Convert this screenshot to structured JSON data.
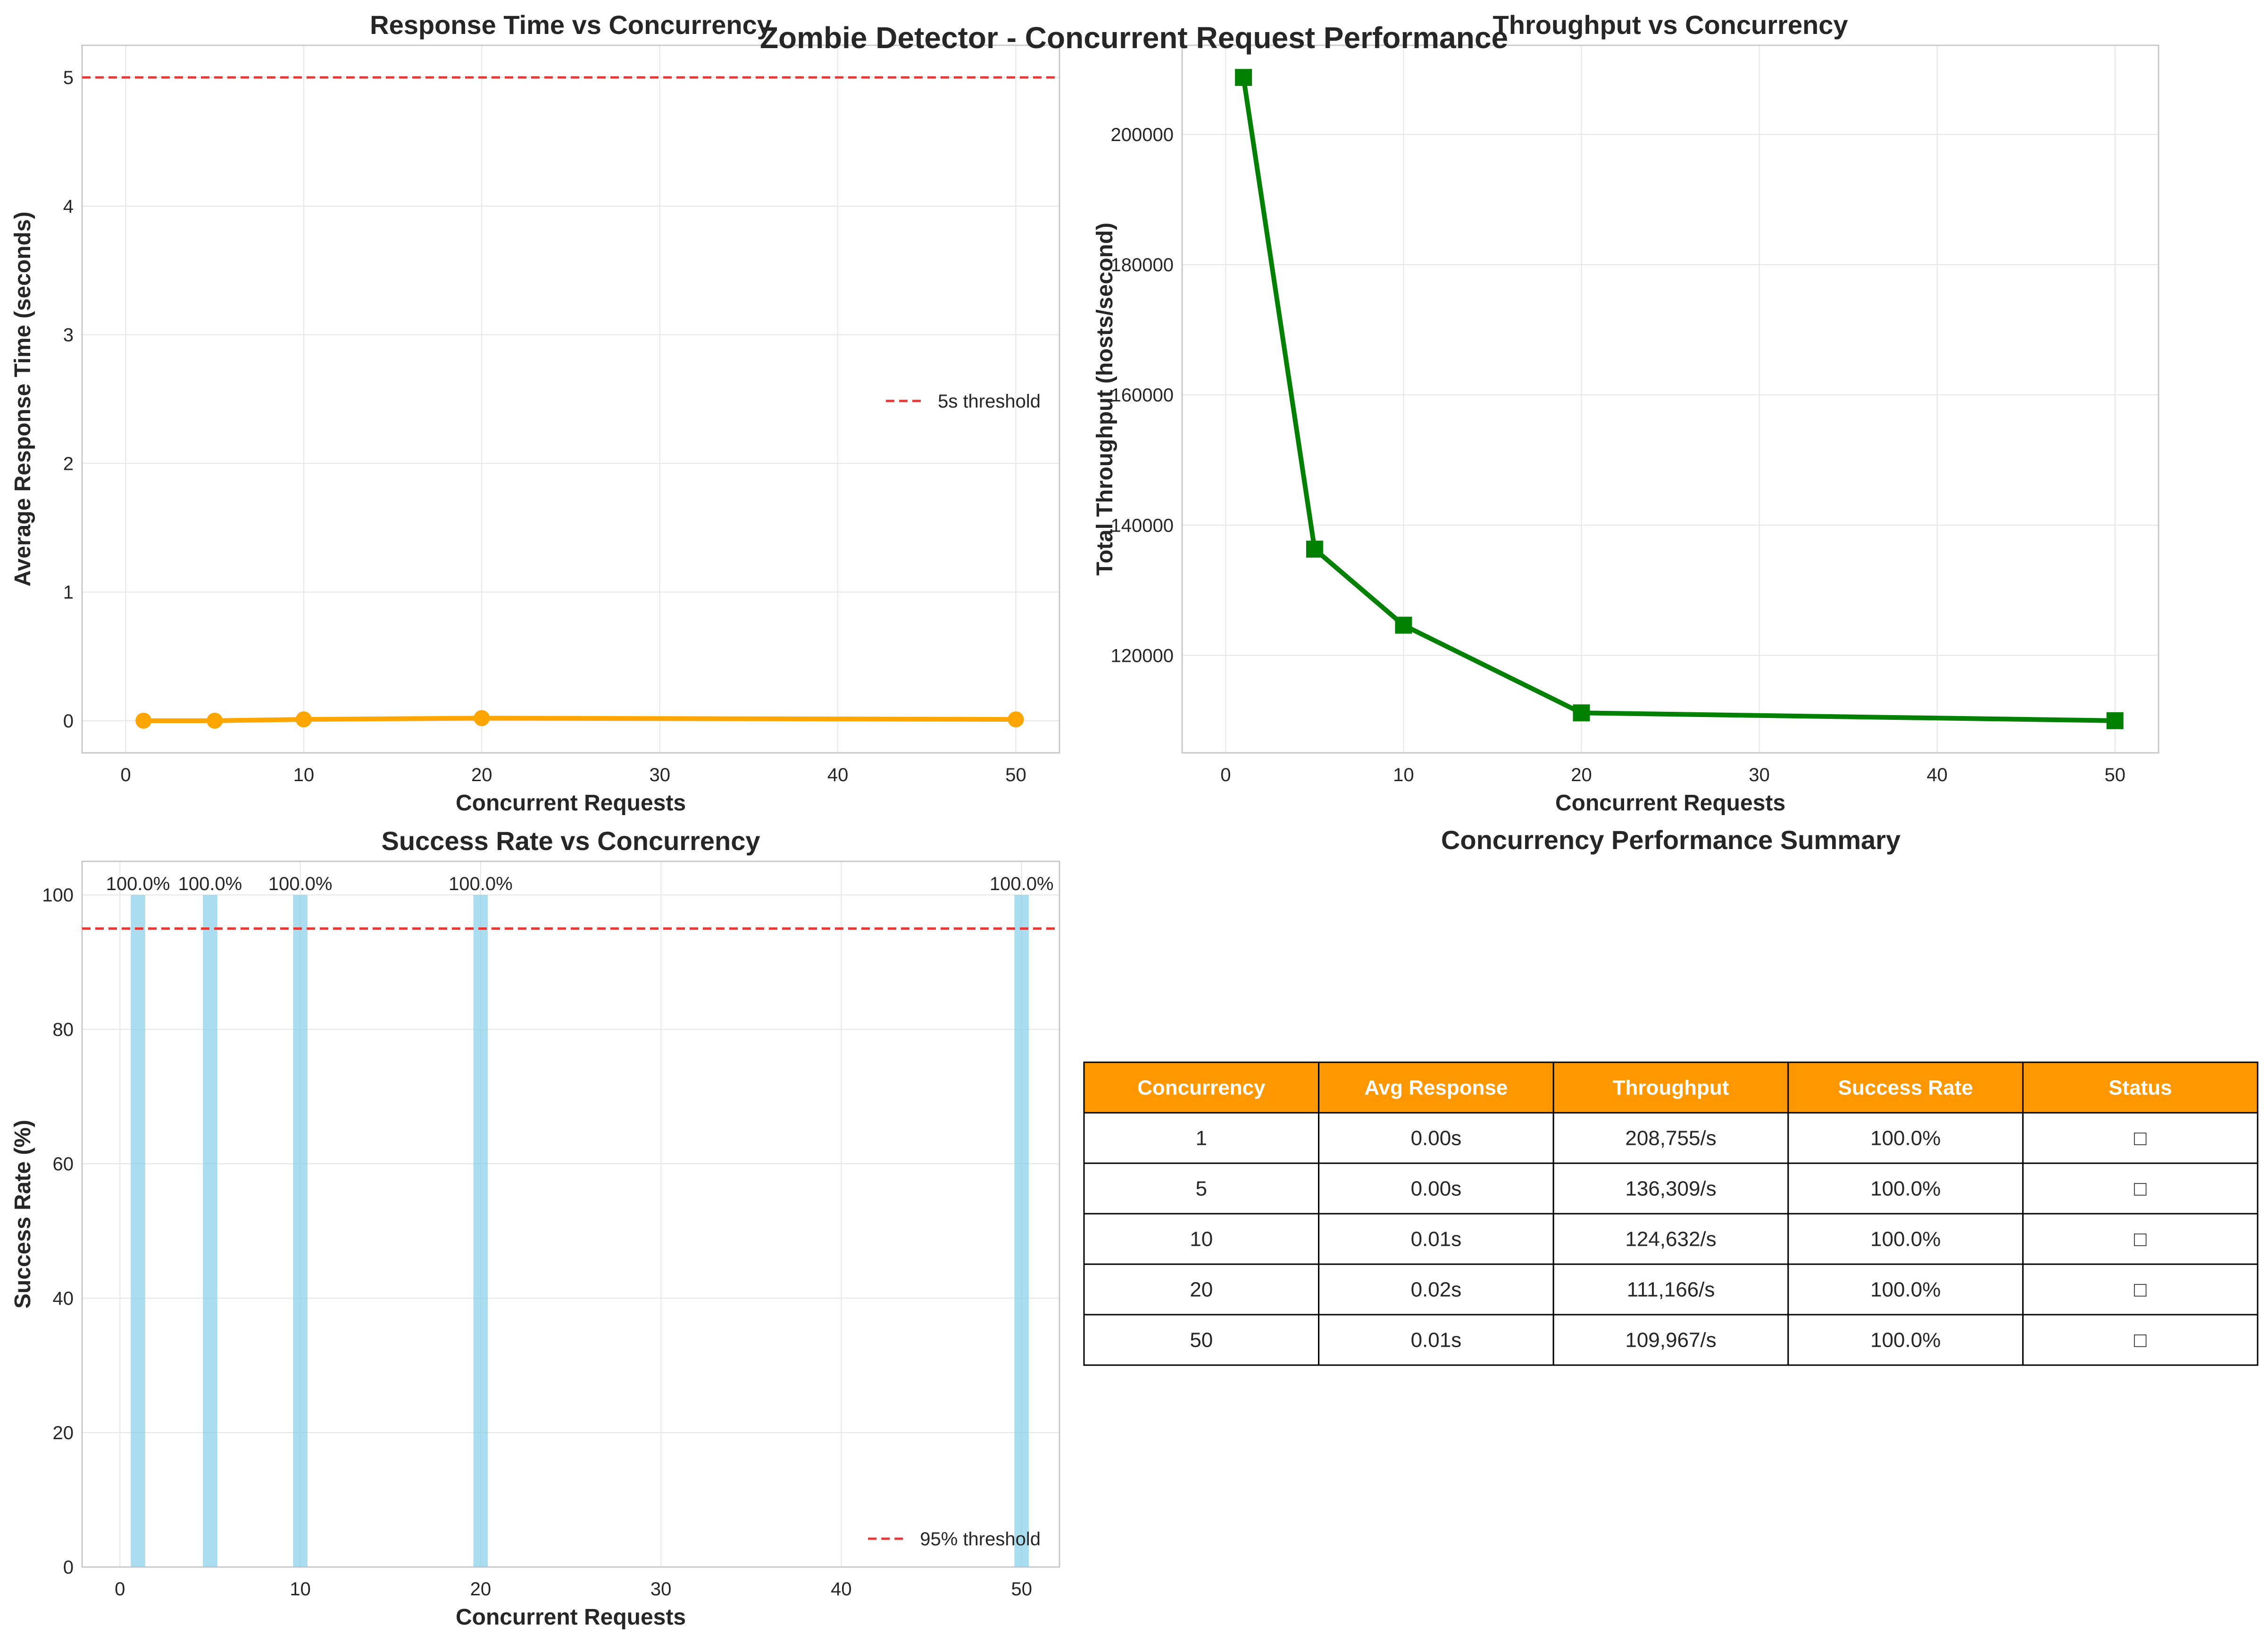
{
  "figure": {
    "suptitle": "Zombie Detector - Concurrent Request Performance",
    "colors": {
      "response": "#FFA500",
      "throughput": "#008000",
      "bars": "#87CEEB",
      "threshold": "#E53935",
      "table_header": "#FF9800",
      "grid": "#e6e6e6",
      "spine": "#c8c8c8"
    }
  },
  "chart_data": [
    {
      "type": "line",
      "title": "Response Time vs Concurrency",
      "xlabel": "Concurrent Requests",
      "ylabel": "Average Response Time (seconds)",
      "xlim": [
        -2.45,
        52.45
      ],
      "ylim": [
        -0.25,
        5.25
      ],
      "xticks": [
        0,
        10,
        20,
        30,
        40,
        50
      ],
      "yticks": [
        0,
        1,
        2,
        3,
        4,
        5
      ],
      "grid": true,
      "legend_loc": "center right",
      "marker": "circle",
      "series": [
        {
          "x": [
            1,
            5,
            10,
            20,
            50
          ],
          "y": [
            0.0,
            0.0,
            0.01,
            0.02,
            0.01
          ]
        }
      ],
      "threshold": {
        "y": 5,
        "label": "5s threshold"
      }
    },
    {
      "type": "line",
      "title": "Throughput vs Concurrency",
      "xlabel": "Concurrent Requests",
      "ylabel": "Total Throughput (hosts/second)",
      "xlim": [
        -2.45,
        52.45
      ],
      "ylim": [
        105028,
        213694
      ],
      "xticks": [
        0,
        10,
        20,
        30,
        40,
        50
      ],
      "yticks": [
        120000,
        140000,
        160000,
        180000,
        200000
      ],
      "grid": true,
      "marker": "square",
      "series": [
        {
          "x": [
            1,
            5,
            10,
            20,
            50
          ],
          "y": [
            208755,
            136309,
            124632,
            111166,
            109967
          ]
        }
      ]
    },
    {
      "type": "bar",
      "title": "Success Rate vs Concurrency",
      "xlabel": "Concurrent Requests",
      "ylabel": "Success Rate (%)",
      "xlim": [
        -2.1,
        52.1
      ],
      "ylim": [
        0,
        105
      ],
      "xticks": [
        0,
        10,
        20,
        30,
        40,
        50
      ],
      "yticks": [
        0,
        20,
        40,
        60,
        80,
        100
      ],
      "grid": true,
      "legend_loc": "lower right",
      "bar_width": 0.8,
      "x": [
        1,
        5,
        10,
        20,
        50
      ],
      "values": [
        100.0,
        100.0,
        100.0,
        100.0,
        100.0
      ],
      "labels": [
        "100.0%",
        "100.0%",
        "100.0%",
        "100.0%",
        "100.0%"
      ],
      "threshold": {
        "y": 95,
        "label": "95% threshold"
      }
    },
    {
      "type": "table",
      "title": "Concurrency Performance Summary",
      "columns": [
        "Concurrency",
        "Avg Response",
        "Throughput",
        "Success Rate",
        "Status"
      ],
      "rows": [
        [
          "1",
          "0.00s",
          "208,755/s",
          "100.0%",
          "□"
        ],
        [
          "5",
          "0.00s",
          "136,309/s",
          "100.0%",
          "□"
        ],
        [
          "10",
          "0.01s",
          "124,632/s",
          "100.0%",
          "□"
        ],
        [
          "20",
          "0.02s",
          "111,166/s",
          "100.0%",
          "□"
        ],
        [
          "50",
          "0.01s",
          "109,967/s",
          "100.0%",
          "□"
        ]
      ]
    }
  ]
}
